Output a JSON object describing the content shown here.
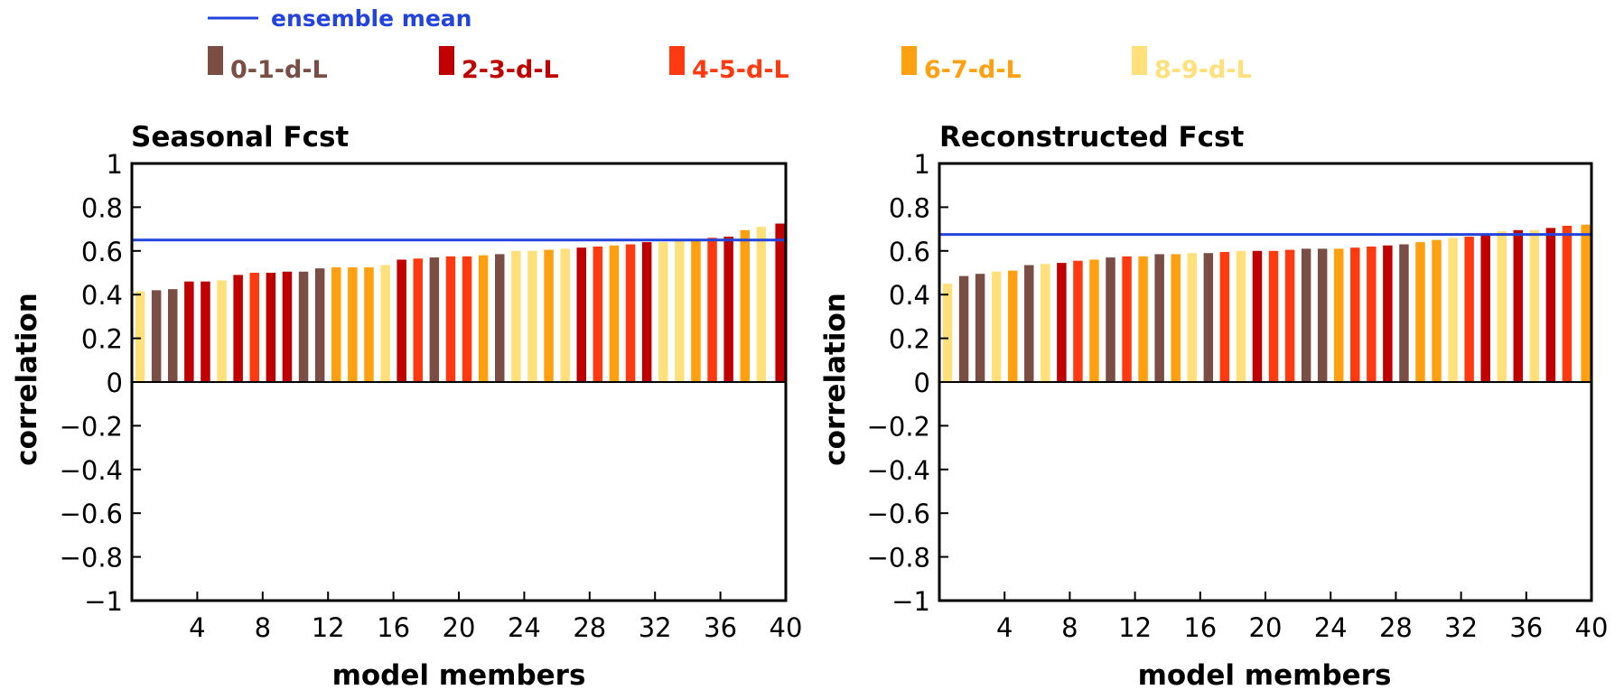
{
  "legend": {
    "mean_label": "ensemble mean",
    "mean_color": "#2244dd",
    "groups": [
      {
        "label": "0-1-d-L",
        "color": "#7a4e44"
      },
      {
        "label": "2-3-d-L",
        "color": "#c00000"
      },
      {
        "label": "4-5-d-L",
        "color": "#ff3a10"
      },
      {
        "label": "6-7-d-L",
        "color": "#ffa010"
      },
      {
        "label": "8-9-d-L",
        "color": "#ffe07a"
      }
    ]
  },
  "chart_data": [
    {
      "type": "bar",
      "title": "Seasonal Fcst",
      "xlabel": "model members",
      "ylabel": "correlation",
      "xlim": [
        0,
        40
      ],
      "ylim": [
        -1,
        1
      ],
      "xticks": [
        4,
        8,
        12,
        16,
        20,
        24,
        28,
        32,
        36,
        40
      ],
      "yticks": [
        1,
        0.8,
        0.6,
        0.4,
        0.2,
        0,
        -0.2,
        -0.4,
        -0.6,
        -0.8,
        -1
      ],
      "ytick_labels": [
        "1",
        "0.8",
        "0.6",
        "0.4",
        "0.2",
        "0",
        "-0.2",
        "-0.4",
        "-0.6",
        "-0.8",
        "-1"
      ],
      "ensemble_mean": 0.65,
      "members": [
        1,
        2,
        3,
        4,
        5,
        6,
        7,
        8,
        9,
        10,
        11,
        12,
        13,
        14,
        15,
        16,
        17,
        18,
        19,
        20,
        21,
        22,
        23,
        24,
        25,
        26,
        27,
        28,
        29,
        30,
        31,
        32,
        33,
        34,
        35,
        36,
        37,
        38,
        39,
        40
      ],
      "groups": [
        4,
        0,
        0,
        1,
        1,
        4,
        1,
        2,
        1,
        1,
        0,
        0,
        3,
        3,
        3,
        4,
        1,
        2,
        0,
        2,
        2,
        3,
        0,
        4,
        4,
        3,
        4,
        1,
        2,
        3,
        2,
        1,
        4,
        4,
        3,
        2,
        1,
        3,
        4,
        1
      ],
      "values": [
        0.415,
        0.42,
        0.425,
        0.46,
        0.46,
        0.465,
        0.49,
        0.5,
        0.5,
        0.505,
        0.505,
        0.52,
        0.525,
        0.525,
        0.525,
        0.535,
        0.56,
        0.565,
        0.57,
        0.575,
        0.575,
        0.58,
        0.585,
        0.6,
        0.6,
        0.605,
        0.61,
        0.615,
        0.62,
        0.625,
        0.63,
        0.64,
        0.64,
        0.645,
        0.645,
        0.66,
        0.665,
        0.695,
        0.71,
        0.725
      ]
    },
    {
      "type": "bar",
      "title": "Reconstructed Fcst",
      "xlabel": "model members",
      "ylabel": "correlation",
      "xlim": [
        0,
        40
      ],
      "ylim": [
        -1,
        1
      ],
      "xticks": [
        4,
        8,
        12,
        16,
        20,
        24,
        28,
        32,
        36,
        40
      ],
      "yticks": [
        1,
        0.8,
        0.6,
        0.4,
        0.2,
        0,
        -0.2,
        -0.4,
        -0.6,
        -0.8,
        -1
      ],
      "ytick_labels": [
        "1",
        "0.8",
        "0.6",
        "0.4",
        "0.2",
        "0",
        "-0.2",
        "-0.4",
        "-0.6",
        "-0.8",
        "-1"
      ],
      "ensemble_mean": 0.675,
      "members": [
        1,
        2,
        3,
        4,
        5,
        6,
        7,
        8,
        9,
        10,
        11,
        12,
        13,
        14,
        15,
        16,
        17,
        18,
        19,
        20,
        21,
        22,
        23,
        24,
        25,
        26,
        27,
        28,
        29,
        30,
        31,
        32,
        33,
        34,
        35,
        36,
        37,
        38,
        39,
        40
      ],
      "groups": [
        4,
        0,
        0,
        4,
        3,
        0,
        4,
        1,
        2,
        3,
        0,
        2,
        3,
        0,
        3,
        4,
        0,
        2,
        4,
        1,
        2,
        2,
        0,
        0,
        3,
        2,
        2,
        1,
        0,
        3,
        3,
        4,
        2,
        1,
        4,
        1,
        4,
        1,
        2,
        3
      ],
      "values": [
        0.45,
        0.485,
        0.495,
        0.505,
        0.51,
        0.535,
        0.54,
        0.545,
        0.555,
        0.56,
        0.57,
        0.575,
        0.575,
        0.585,
        0.585,
        0.59,
        0.59,
        0.595,
        0.6,
        0.6,
        0.6,
        0.605,
        0.61,
        0.61,
        0.61,
        0.615,
        0.62,
        0.625,
        0.63,
        0.64,
        0.65,
        0.66,
        0.665,
        0.67,
        0.69,
        0.695,
        0.695,
        0.705,
        0.715,
        0.72
      ]
    }
  ]
}
